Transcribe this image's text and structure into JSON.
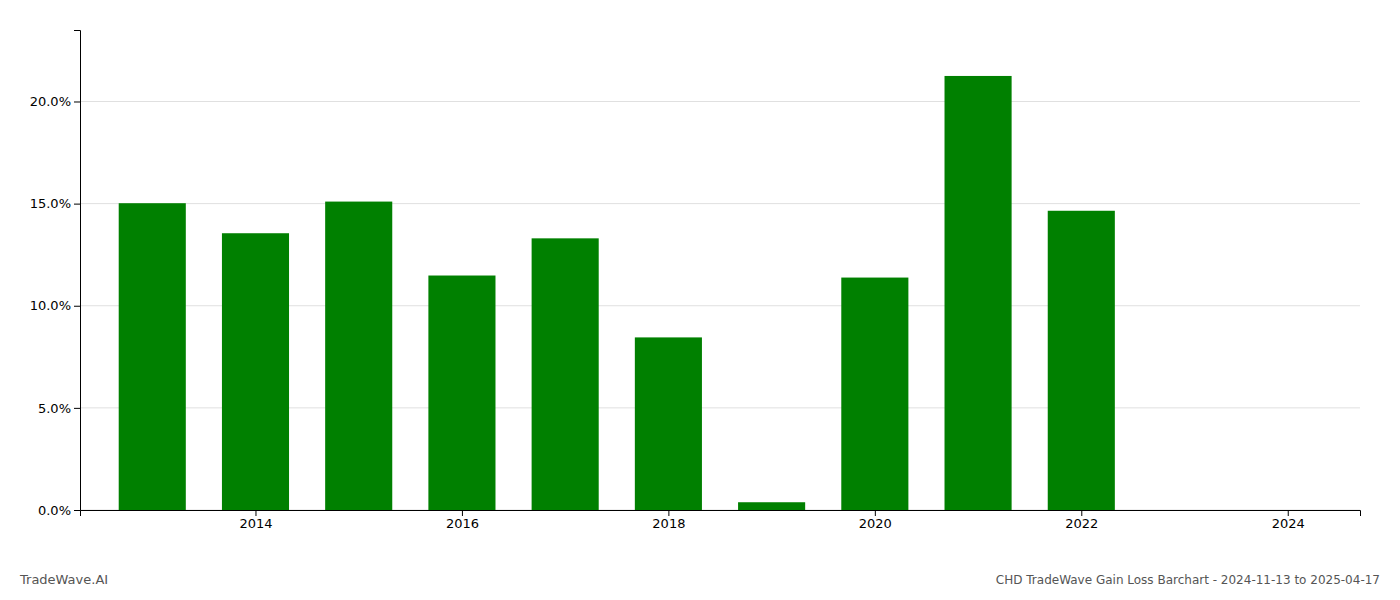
{
  "chart_data": {
    "type": "bar",
    "title": "CHD TradeWave Gain Loss Barchart - 2024-11-13 to 2025-04-17",
    "annotations": [
      "TradeWave.AI"
    ],
    "x": [
      2013,
      2014,
      2015,
      2016,
      2017,
      2018,
      2019,
      2020,
      2021,
      2022,
      2023
    ],
    "values": [
      0.1502,
      0.1355,
      0.151,
      0.1148,
      0.133,
      0.0845,
      0.0038,
      0.1138,
      0.2125,
      0.1465,
      0.0
    ],
    "color": "#008000",
    "xlim": [
      2012.3,
      2024.7
    ],
    "xticks": [
      2014,
      2016,
      2018,
      2020,
      2022,
      2024
    ],
    "ylim": [
      0,
      0.235
    ],
    "yticks": [
      {
        "value": 0.0,
        "label": "0.0%"
      },
      {
        "value": 0.05,
        "label": "5.0%"
      },
      {
        "value": 0.1,
        "label": "10.0%"
      },
      {
        "value": 0.15,
        "label": "15.0%"
      },
      {
        "value": 0.2,
        "label": "20.0%"
      }
    ],
    "grid": true
  }
}
